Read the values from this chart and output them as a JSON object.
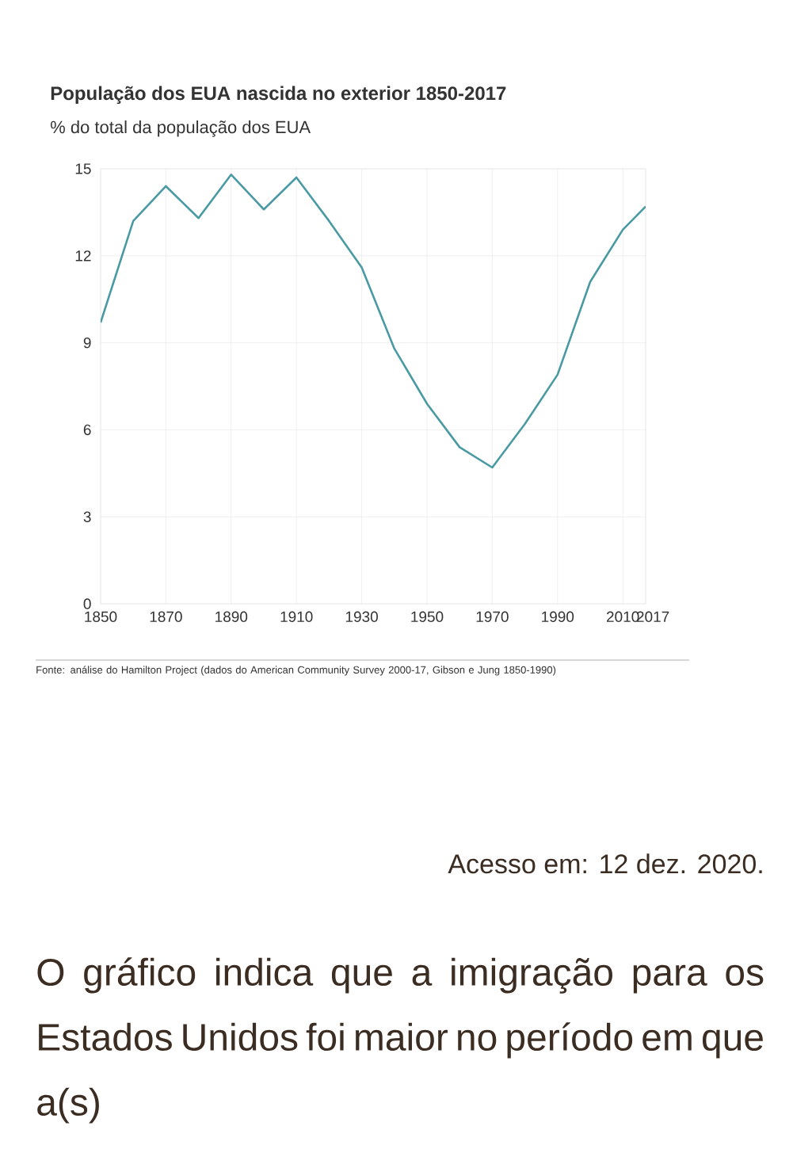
{
  "chart_data": {
    "type": "line",
    "title": "População dos EUA nascida no exterior 1850-2017",
    "subtitle": "% do total da população dos EUA",
    "x": [
      1850,
      1860,
      1870,
      1880,
      1890,
      1900,
      1910,
      1920,
      1930,
      1940,
      1950,
      1960,
      1970,
      1980,
      1990,
      2000,
      2010,
      2017
    ],
    "values": [
      9.7,
      13.2,
      14.4,
      13.3,
      14.8,
      13.6,
      14.7,
      13.2,
      11.6,
      8.8,
      6.9,
      5.4,
      4.7,
      6.2,
      7.9,
      11.1,
      12.9,
      13.7
    ],
    "color": "#4a9aa3",
    "xlim": [
      1850,
      2017
    ],
    "xticks": [
      1850,
      1870,
      1890,
      1910,
      1930,
      1950,
      1970,
      1990,
      2010,
      2017
    ],
    "ylim": [
      0,
      15
    ],
    "yticks": [
      0,
      3,
      6,
      9,
      12,
      15
    ],
    "grid": true,
    "annotations": [
      "Fonte: análise do Hamilton Project (dados do American Community Survey 2000-17, Gibson e Jung 1850-1990)",
      "Acesso em: 12 dez. 2020.",
      "O gráfico indica que a imigração para os Estados Unidos foi maior no período em que a(s)"
    ]
  }
}
